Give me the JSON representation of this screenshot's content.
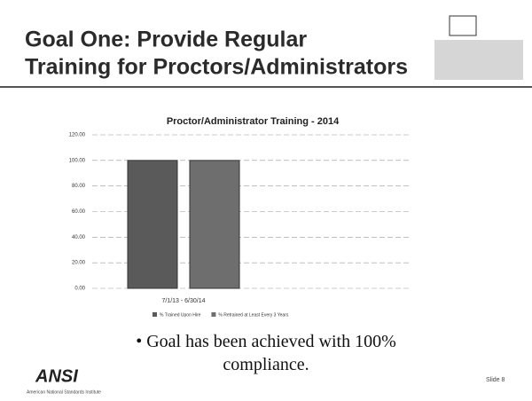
{
  "header": {
    "title_lines": [
      "Goal One: Provide Regular",
      "Training for Proctors/Administrators"
    ]
  },
  "chart_data": {
    "type": "bar",
    "title": "Proctor/Administrator Training - 2014",
    "categories": [
      "7/1/13 - 6/30/14"
    ],
    "series": [
      {
        "name": "% Trained Upon Hire",
        "color": "#5a5a5a",
        "values": [
          100
        ]
      },
      {
        "name": "% Retrained at Least Every 3 Years",
        "color": "#6e6e6e",
        "values": [
          100
        ]
      }
    ],
    "ylim": [
      0,
      120
    ],
    "yticks": [
      {
        "value": 0,
        "label": "0.00"
      },
      {
        "value": 20,
        "label": "20.00"
      },
      {
        "value": 40,
        "label": "40.00"
      },
      {
        "value": 60,
        "label": "60.00"
      },
      {
        "value": 80,
        "label": "80.00"
      },
      {
        "value": 100,
        "label": "100.00"
      },
      {
        "value": 120,
        "label": "120.00"
      }
    ],
    "grid": true,
    "legend": "bottom"
  },
  "bullet": "Goal has been achieved with 100% compliance.",
  "footer": {
    "logo": "ANSI",
    "logo_caption": "American National Standards Institute",
    "slide": "Slide 8"
  }
}
